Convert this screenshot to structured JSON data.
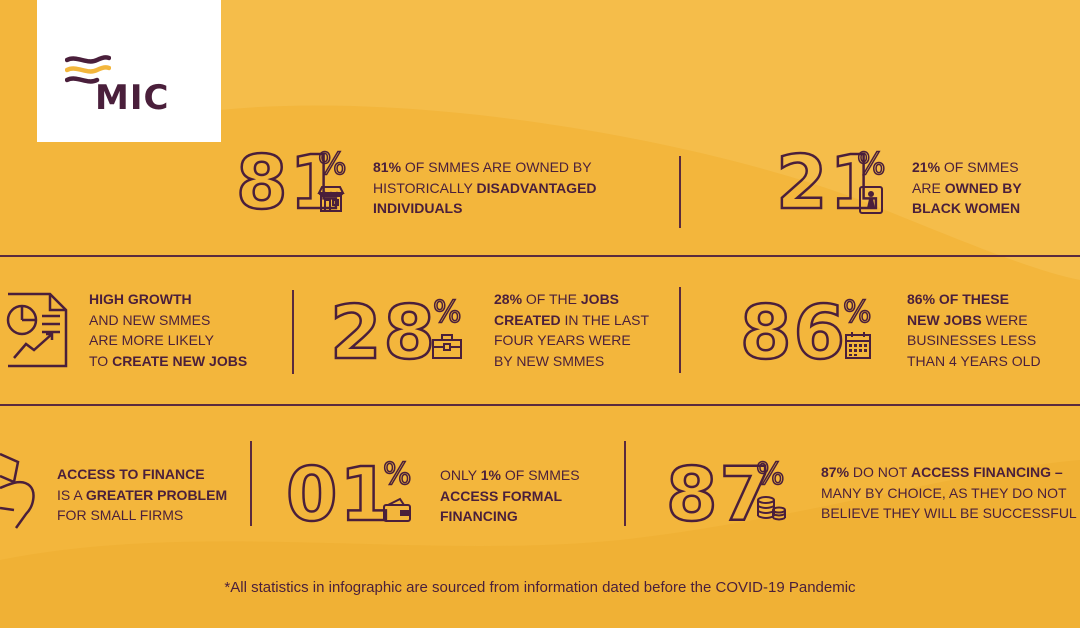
{
  "brand": {
    "name": "MIC",
    "colors": {
      "background": "#f3b63c",
      "ink": "#4a1f3b",
      "panel": "#ffffff"
    }
  },
  "stats": [
    {
      "id": "s81",
      "number": "81",
      "pct": "%",
      "icon": "storefront-icon",
      "lines": [
        [
          "",
          "81% ",
          "OF SMMEs ARE OWNED BY"
        ],
        [
          "HISTORICALLY ",
          "DISADVANTAGED",
          ""
        ],
        [
          "",
          "INDIVIDUALS",
          ""
        ]
      ]
    },
    {
      "id": "s21",
      "number": "21",
      "pct": "%",
      "icon": "woman-figure-icon",
      "lines": [
        [
          "",
          "21% ",
          "OF SMMEs"
        ],
        [
          "ARE ",
          "OWNED BY",
          ""
        ],
        [
          "",
          "BLACK WOMEN",
          ""
        ]
      ]
    },
    {
      "id": "growth",
      "icon": "growth-chart-document-icon",
      "lines": [
        [
          "",
          "HIGH GROWTH",
          ""
        ],
        [
          "AND NEW SMMEs",
          "",
          ""
        ],
        [
          "ARE MORE LIKELY",
          "",
          ""
        ],
        [
          "TO ",
          "CREATE NEW JOBS",
          ""
        ]
      ]
    },
    {
      "id": "s28",
      "number": "28",
      "pct": "%",
      "icon": "briefcase-icon",
      "lines": [
        [
          "",
          "28% ",
          "OF THE "
        ],
        [
          "",
          "JOBS",
          ""
        ],
        [
          "",
          "CREATED ",
          "IN THE LAST"
        ],
        [
          "FOUR YEARS WERE",
          "",
          ""
        ],
        [
          "BY NEW SMMEs",
          "",
          ""
        ]
      ]
    },
    {
      "id": "s86",
      "number": "86",
      "pct": "%",
      "icon": "calendar-icon",
      "lines": [
        [
          "",
          "86% OF THESE",
          ""
        ],
        [
          "",
          "NEW JOBS ",
          "WERE"
        ],
        [
          "BUSINESSES LESS",
          "",
          ""
        ],
        [
          "THAN 4 YEARS OLD",
          "",
          ""
        ]
      ]
    },
    {
      "id": "finance",
      "icon": "money-hand-icon",
      "lines": [
        [
          "",
          "ACCESS TO FINANCE",
          ""
        ],
        [
          "IS A ",
          "GREATER PROBLEM",
          ""
        ],
        [
          "FOR SMALL FIRMS",
          "",
          ""
        ]
      ]
    },
    {
      "id": "s01",
      "number": "01",
      "pct": "%",
      "icon": "wallet-icon",
      "lines": [
        [
          "ONLY ",
          "1% ",
          "OF SMMEs"
        ],
        [
          "",
          "ACCESS FORMAL",
          ""
        ],
        [
          "",
          "FINANCING",
          ""
        ]
      ]
    },
    {
      "id": "s87",
      "number": "87",
      "pct": "%",
      "icon": "coin-stack-icon",
      "lines": [
        [
          "",
          "87% ",
          "DO NOT "
        ],
        [
          "",
          "ACCESS FINANCING –",
          ""
        ],
        [
          "MANY BY CHOICE, AS THEY DO NOT",
          "",
          ""
        ],
        [
          "BELIEVE THEY WILL BE SUCCESSFUL",
          "",
          ""
        ]
      ]
    }
  ],
  "footnote": "*All statistics in infographic are sourced from information dated before the COVID-19 Pandemic"
}
